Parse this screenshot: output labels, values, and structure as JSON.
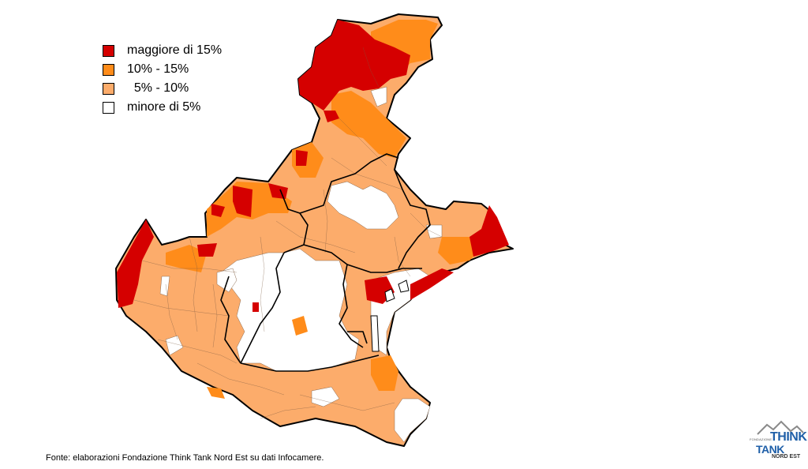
{
  "legend": {
    "items": [
      {
        "label": "maggiore di 15%",
        "color": "#d50000"
      },
      {
        "label": "10% - 15%",
        "color": "#ff8c1a"
      },
      {
        "label": "  5% - 10%",
        "color": "#fcac6b"
      },
      {
        "label": "minore di 5%",
        "color": "#ffffff"
      }
    ]
  },
  "source": "Fonte: elaborazioni Fondazione Think Tank Nord Est su dati Infocamere.",
  "logo": {
    "small_text": "FONDAZIONE",
    "think": "THINK",
    "tank": "TANK",
    "nord_est": "NORD EST",
    "mountain_color": "#8a8a8a",
    "brand_color": "#1f5fa8"
  },
  "map": {
    "region": "Veneto",
    "boundary_color": "#000000",
    "internal_line_color": "#7a5a40"
  }
}
